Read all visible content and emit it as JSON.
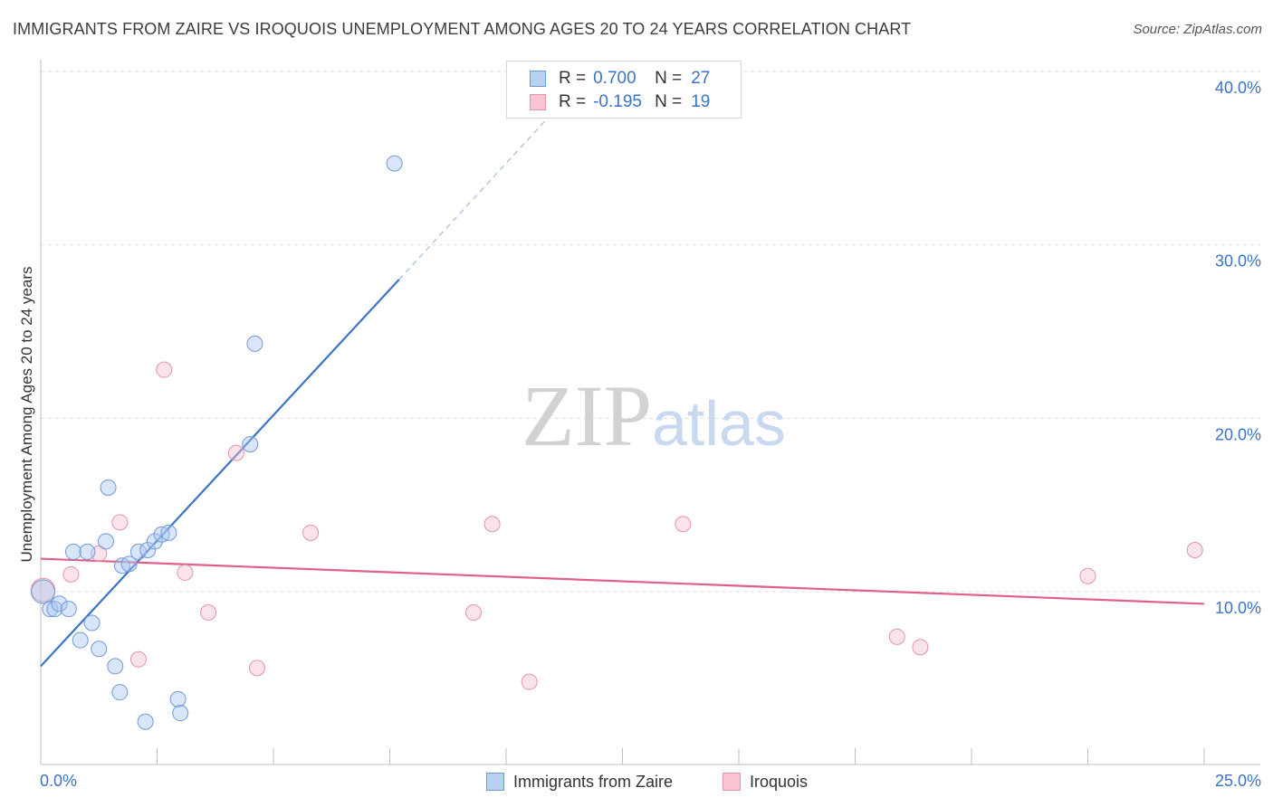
{
  "header": {
    "title": "IMMIGRANTS FROM ZAIRE VS IROQUOIS UNEMPLOYMENT AMONG AGES 20 TO 24 YEARS CORRELATION CHART",
    "source": "Source: ZipAtlas.com"
  },
  "watermark": {
    "zip": "ZIP",
    "atlas": "atlas"
  },
  "legend": {
    "rows": [
      {
        "r_label": "R =",
        "r_value": "0.700",
        "n_label": "N =",
        "n_value": "27",
        "fill": "#b8d0f2",
        "stroke": "#6f9ad8"
      },
      {
        "r_label": "R =",
        "r_value": "-0.195",
        "n_label": "N =",
        "n_value": "19",
        "fill": "#f8c4d2",
        "stroke": "#e493aa"
      }
    ]
  },
  "bottom_legend": {
    "series1": "Immigrants from Zaire",
    "series2": "Iroquois"
  },
  "chart_data": {
    "type": "scatter",
    "title": "IMMIGRANTS FROM ZAIRE VS IROQUOIS UNEMPLOYMENT AMONG AGES 20 TO 24 YEARS CORRELATION CHART",
    "xlabel": "",
    "ylabel": "Unemployment Among Ages 20 to 24 years",
    "xlim": [
      0,
      25
    ],
    "ylim": [
      0,
      41
    ],
    "x_tick_labels": [
      "0.0%",
      "25.0%"
    ],
    "y_ticks": [
      10,
      20,
      30,
      40
    ],
    "y_tick_labels": [
      "10.0%",
      "20.0%",
      "30.0%",
      "40.0%"
    ],
    "colors": {
      "series1": "#3a73c8",
      "series2": "#e0608b",
      "axis_text": "#3a73c8"
    },
    "series": [
      {
        "name": "Immigrants from Zaire",
        "points": [
          {
            "x": 0.05,
            "y": 10.0
          },
          {
            "x": 0.2,
            "y": 9.0
          },
          {
            "x": 0.3,
            "y": 9.0
          },
          {
            "x": 0.4,
            "y": 9.3
          },
          {
            "x": 0.6,
            "y": 9.0
          },
          {
            "x": 0.7,
            "y": 12.3
          },
          {
            "x": 1.0,
            "y": 12.3
          },
          {
            "x": 1.1,
            "y": 8.2
          },
          {
            "x": 0.85,
            "y": 7.2
          },
          {
            "x": 1.25,
            "y": 6.7
          },
          {
            "x": 1.4,
            "y": 12.9
          },
          {
            "x": 1.45,
            "y": 16.0
          },
          {
            "x": 1.6,
            "y": 5.7
          },
          {
            "x": 1.7,
            "y": 4.2
          },
          {
            "x": 1.75,
            "y": 11.5
          },
          {
            "x": 1.9,
            "y": 11.6
          },
          {
            "x": 2.1,
            "y": 12.3
          },
          {
            "x": 2.3,
            "y": 12.4
          },
          {
            "x": 2.45,
            "y": 12.9
          },
          {
            "x": 2.6,
            "y": 13.3
          },
          {
            "x": 2.75,
            "y": 13.4
          },
          {
            "x": 2.25,
            "y": 2.5
          },
          {
            "x": 2.95,
            "y": 3.8
          },
          {
            "x": 3.0,
            "y": 3.0
          },
          {
            "x": 4.5,
            "y": 18.5
          },
          {
            "x": 4.6,
            "y": 24.3
          },
          {
            "x": 7.6,
            "y": 34.7
          }
        ],
        "trend": {
          "x0": 0.0,
          "y0": 5.7,
          "x1": 7.7,
          "y1": 28.0,
          "dash_x1": 11.3,
          "dash_y1": 38.5
        }
      },
      {
        "name": "Iroquois",
        "points": [
          {
            "x": 0.05,
            "y": 10.1
          },
          {
            "x": 0.65,
            "y": 11.0
          },
          {
            "x": 1.25,
            "y": 12.2
          },
          {
            "x": 1.7,
            "y": 14.0
          },
          {
            "x": 2.1,
            "y": 6.1
          },
          {
            "x": 2.65,
            "y": 22.8
          },
          {
            "x": 3.1,
            "y": 11.1
          },
          {
            "x": 3.6,
            "y": 8.8
          },
          {
            "x": 4.2,
            "y": 18.0
          },
          {
            "x": 4.65,
            "y": 5.6
          },
          {
            "x": 5.8,
            "y": 13.4
          },
          {
            "x": 9.3,
            "y": 8.8
          },
          {
            "x": 9.7,
            "y": 13.9
          },
          {
            "x": 10.5,
            "y": 4.8
          },
          {
            "x": 13.8,
            "y": 13.9
          },
          {
            "x": 18.4,
            "y": 7.4
          },
          {
            "x": 18.9,
            "y": 6.8
          },
          {
            "x": 22.5,
            "y": 10.9
          },
          {
            "x": 24.8,
            "y": 12.4
          }
        ],
        "trend": {
          "x0": 0.0,
          "y0": 11.9,
          "x1": 25.0,
          "y1": 9.3
        }
      }
    ]
  }
}
